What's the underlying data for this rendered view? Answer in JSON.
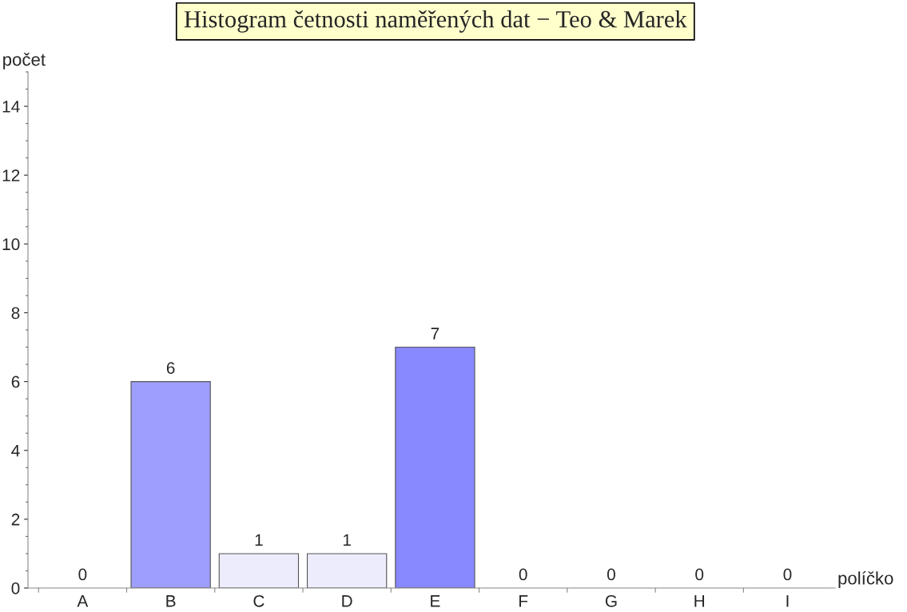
{
  "chart_data": {
    "type": "bar",
    "title": "Histogram četnosti naměřených dat − Teo & Marek",
    "xlabel": "políčko",
    "ylabel": "počet",
    "categories": [
      "A",
      "B",
      "C",
      "D",
      "E",
      "F",
      "G",
      "H",
      "I"
    ],
    "values": [
      0,
      6,
      1,
      1,
      7,
      0,
      0,
      0,
      0
    ],
    "colors": [
      "#f4f4fc",
      "#9e9eff",
      "#ececfc",
      "#ececfc",
      "#8888ff",
      "#f4f4fc",
      "#f4f4fc",
      "#f4f4fc",
      "#f4f4fc"
    ],
    "ylim": [
      0,
      15
    ],
    "yticks": [
      0,
      2,
      4,
      6,
      8,
      10,
      12,
      14
    ],
    "data_labels": true,
    "grid": false,
    "legend": false
  }
}
